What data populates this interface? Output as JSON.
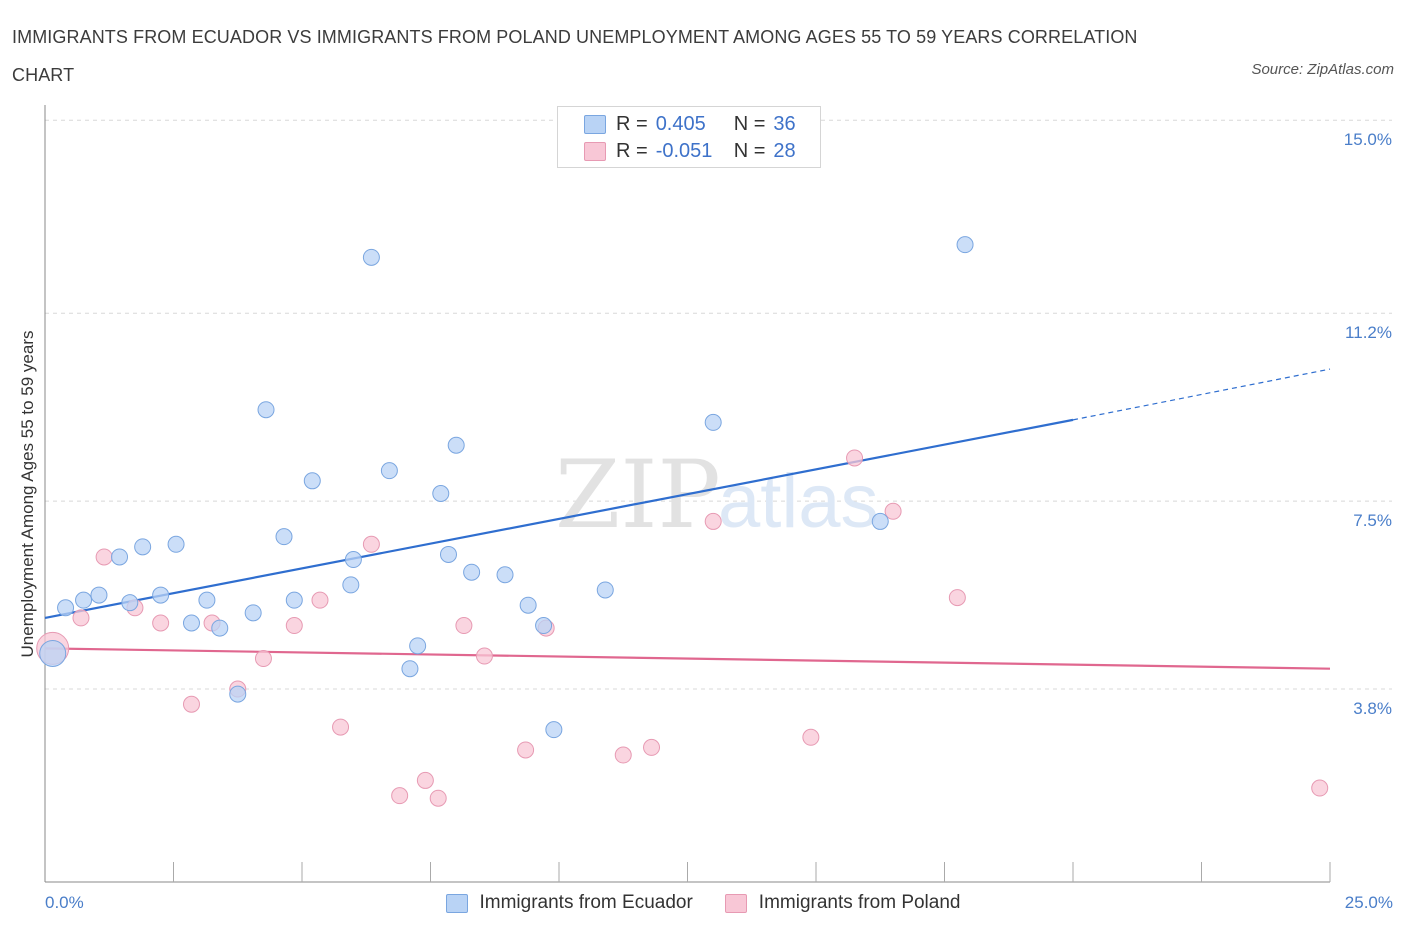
{
  "title": "IMMIGRANTS FROM ECUADOR VS IMMIGRANTS FROM POLAND UNEMPLOYMENT AMONG AGES 55 TO 59 YEARS CORRELATION CHART",
  "source": "Source: ZipAtlas.com",
  "watermark": {
    "zip": "ZIP",
    "atlas": "atlas"
  },
  "legend": {
    "ecuador": {
      "r_label": "R =",
      "r_value": "0.405",
      "n_label": "N =",
      "n_value": "36"
    },
    "poland": {
      "r_label": "R =",
      "r_value": "-0.051",
      "n_label": "N =",
      "n_value": "28"
    }
  },
  "colors": {
    "ecuador_fill": "#b9d3f5",
    "ecuador_stroke": "#7aa6e0",
    "ecuador_line": "#2f6ecf",
    "poland_fill": "#f8c7d6",
    "poland_stroke": "#e79ab3",
    "poland_line": "#e0678f",
    "tick_text": "#4a7ec9",
    "grid": "#d8d8d8"
  },
  "chart_data": {
    "type": "scatter",
    "title": "IMMIGRANTS FROM ECUADOR VS IMMIGRANTS FROM POLAND UNEMPLOYMENT AMONG AGES 55 TO 59 YEARS CORRELATION CHART",
    "xlabel": "",
    "ylabel": "Unemployment Among Ages 55 to 59 years",
    "xlim": [
      0,
      25
    ],
    "ylim": [
      0,
      15.3
    ],
    "x_tick_labels": [
      "0.0%",
      "25.0%"
    ],
    "y_ticks": [
      3.8,
      7.5,
      11.2,
      15.0
    ],
    "y_tick_labels": [
      "3.8%",
      "7.5%",
      "11.2%",
      "15.0%"
    ],
    "grid": "horizontal dashed",
    "legend_position": "top-center",
    "series": [
      {
        "name": "Immigrants from Ecuador",
        "r": 0.405,
        "n": 36,
        "points": [
          [
            0.4,
            5.4
          ],
          [
            0.75,
            5.55
          ],
          [
            1.05,
            5.65
          ],
          [
            1.45,
            6.4
          ],
          [
            1.65,
            5.5
          ],
          [
            1.9,
            6.6
          ],
          [
            2.25,
            5.65
          ],
          [
            2.55,
            6.65
          ],
          [
            2.85,
            5.1
          ],
          [
            3.15,
            5.55
          ],
          [
            3.4,
            5.0
          ],
          [
            4.05,
            5.3
          ],
          [
            3.75,
            3.7
          ],
          [
            4.3,
            9.3
          ],
          [
            4.65,
            6.8
          ],
          [
            4.85,
            5.55
          ],
          [
            5.2,
            7.9
          ],
          [
            5.95,
            5.85
          ],
          [
            6.0,
            6.35
          ],
          [
            6.35,
            12.3
          ],
          [
            6.7,
            8.1
          ],
          [
            7.1,
            4.2
          ],
          [
            7.25,
            4.65
          ],
          [
            7.7,
            7.65
          ],
          [
            7.85,
            6.45
          ],
          [
            8.0,
            8.6
          ],
          [
            8.3,
            6.1
          ],
          [
            8.95,
            6.05
          ],
          [
            9.4,
            5.45
          ],
          [
            9.7,
            5.05
          ],
          [
            9.9,
            3.0
          ],
          [
            10.9,
            5.75
          ],
          [
            13.0,
            9.05
          ],
          [
            16.25,
            7.1
          ],
          [
            17.9,
            12.55
          ],
          [
            0.15,
            4.5
          ]
        ],
        "trend": {
          "x0": 0,
          "y0": 5.2,
          "x1": 20.0,
          "y1": 9.1,
          "dashed_to_x": 25,
          "dashed_to_y": 10.1
        }
      },
      {
        "name": "Immigrants from Poland",
        "r": -0.051,
        "n": 28,
        "points": [
          [
            0.15,
            4.6
          ],
          [
            0.7,
            5.2
          ],
          [
            1.15,
            6.4
          ],
          [
            1.75,
            5.4
          ],
          [
            2.25,
            5.1
          ],
          [
            2.85,
            3.5
          ],
          [
            3.25,
            5.1
          ],
          [
            3.75,
            3.8
          ],
          [
            4.25,
            4.4
          ],
          [
            4.85,
            5.05
          ],
          [
            5.35,
            5.55
          ],
          [
            5.75,
            3.05
          ],
          [
            6.35,
            6.65
          ],
          [
            6.9,
            1.7
          ],
          [
            7.4,
            2.0
          ],
          [
            7.65,
            1.65
          ],
          [
            8.15,
            5.05
          ],
          [
            8.55,
            4.45
          ],
          [
            9.35,
            2.6
          ],
          [
            9.75,
            5.0
          ],
          [
            11.25,
            2.5
          ],
          [
            11.8,
            2.65
          ],
          [
            13.0,
            7.1
          ],
          [
            14.9,
            2.85
          ],
          [
            15.75,
            8.35
          ],
          [
            16.5,
            7.3
          ],
          [
            17.75,
            5.6
          ],
          [
            24.8,
            1.85
          ]
        ],
        "trend": {
          "x0": 0,
          "y0": 4.6,
          "x1": 25,
          "y1": 4.2
        }
      }
    ]
  },
  "bottom_legend": {
    "ecuador": "Immigrants from Ecuador",
    "poland": "Immigrants from Poland"
  }
}
